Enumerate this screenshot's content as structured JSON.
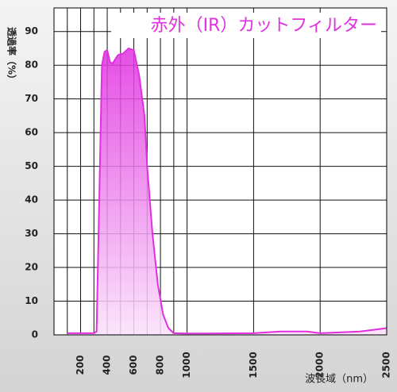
{
  "chart_data": {
    "type": "area",
    "title": "赤外（IR）カットフィルター",
    "y_label": "透過率（%）",
    "x_label": "波長域（nm）",
    "x": [
      100,
      300,
      320,
      340,
      360,
      380,
      400,
      420,
      440,
      480,
      520,
      560,
      600,
      640,
      680,
      700,
      740,
      780,
      820,
      860,
      900,
      1000,
      1500,
      1700,
      1900,
      2000,
      2300,
      2400,
      2500
    ],
    "values": [
      0.5,
      0.5,
      1,
      40,
      80,
      84,
      84.5,
      81,
      80.5,
      83,
      83.5,
      85,
      84.5,
      77,
      65,
      50,
      30,
      15,
      6,
      2,
      0.5,
      0.4,
      0.5,
      1,
      1,
      0.5,
      1,
      1.5,
      2
    ],
    "color": "#e030e0",
    "xlim": [
      0,
      2500
    ],
    "ylim": [
      0,
      97
    ],
    "xticks": [
      200,
      400,
      600,
      800,
      1000,
      1500,
      2000,
      2500
    ],
    "xgrid": [
      100,
      300,
      500,
      700,
      900
    ],
    "yticks": [
      0,
      10,
      20,
      30,
      40,
      50,
      60,
      70,
      80,
      90
    ],
    "grid": true
  }
}
